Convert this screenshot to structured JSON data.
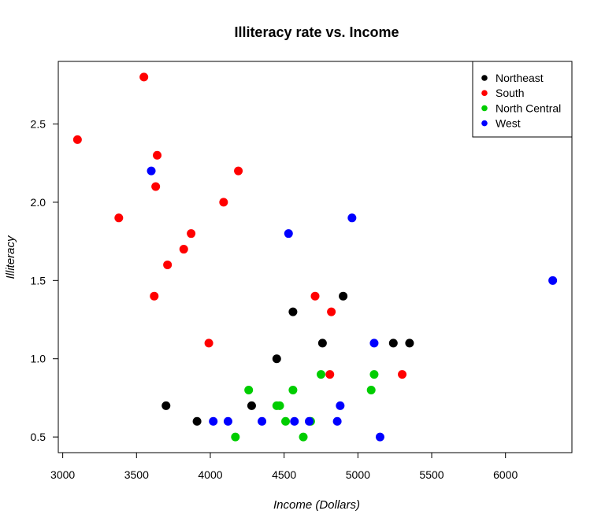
{
  "chart_data": {
    "type": "scatter",
    "title": "Illiteracy rate vs. Income",
    "xlabel": "Income (Dollars)",
    "ylabel": "Illiteracy",
    "xlim": [
      2970,
      6450
    ],
    "ylim": [
      0.4,
      2.9
    ],
    "xticks": [
      3000,
      3500,
      4000,
      4500,
      5000,
      5500,
      6000,
      6500
    ],
    "yticks": [
      0.5,
      1.0,
      1.5,
      2.0,
      2.5
    ],
    "ytick_labels": [
      "0.5",
      "1.0",
      "1.5",
      "2.0",
      "2.5"
    ],
    "grid": false,
    "legend_position": "top-right",
    "series": [
      {
        "name": "Northeast",
        "color": "#000000",
        "points": [
          [
            3700,
            0.7
          ],
          [
            3910,
            0.6
          ],
          [
            4280,
            0.7
          ],
          [
            4450,
            1.0
          ],
          [
            4560,
            1.3
          ],
          [
            4760,
            1.1
          ],
          [
            4900,
            1.4
          ],
          [
            5240,
            1.1
          ],
          [
            5350,
            1.1
          ]
        ]
      },
      {
        "name": "South",
        "color": "#ff0000",
        "points": [
          [
            3100,
            2.4
          ],
          [
            3380,
            1.9
          ],
          [
            3550,
            2.8
          ],
          [
            3620,
            1.4
          ],
          [
            3630,
            2.1
          ],
          [
            3640,
            2.3
          ],
          [
            3710,
            1.6
          ],
          [
            3820,
            1.7
          ],
          [
            3870,
            1.8
          ],
          [
            3990,
            1.1
          ],
          [
            4090,
            2.0
          ],
          [
            4190,
            2.2
          ],
          [
            4710,
            1.4
          ],
          [
            4810,
            0.9
          ],
          [
            4820,
            1.3
          ],
          [
            5300,
            0.9
          ]
        ]
      },
      {
        "name": "North Central",
        "color": "#00cd00",
        "points": [
          [
            4170,
            0.5
          ],
          [
            4260,
            0.8
          ],
          [
            4450,
            0.7
          ],
          [
            4470,
            0.7
          ],
          [
            4510,
            0.6
          ],
          [
            4560,
            0.8
          ],
          [
            4630,
            0.5
          ],
          [
            4750,
            0.9
          ],
          [
            5090,
            0.8
          ],
          [
            5110,
            0.9
          ],
          [
            4680,
            0.6
          ]
        ]
      },
      {
        "name": "West",
        "color": "#0000ff",
        "points": [
          [
            3600,
            2.2
          ],
          [
            4020,
            0.6
          ],
          [
            4120,
            0.6
          ],
          [
            4350,
            0.6
          ],
          [
            4530,
            1.8
          ],
          [
            4570,
            0.6
          ],
          [
            4670,
            0.6
          ],
          [
            4860,
            0.6
          ],
          [
            4880,
            0.7
          ],
          [
            4960,
            1.9
          ],
          [
            5110,
            1.1
          ],
          [
            5150,
            0.5
          ],
          [
            6320,
            1.5
          ]
        ]
      }
    ]
  }
}
